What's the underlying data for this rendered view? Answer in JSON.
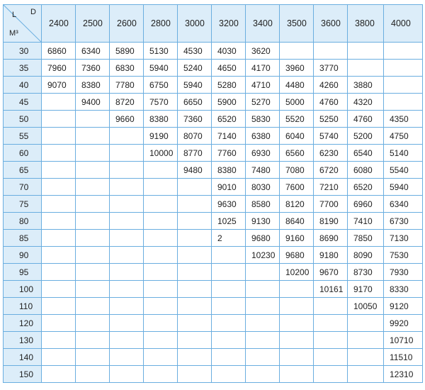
{
  "table": {
    "corner": {
      "row_label": "L",
      "col_label": "D",
      "unit": "M³"
    },
    "columns": [
      "2400",
      "2500",
      "2600",
      "2800",
      "3000",
      "3200",
      "3400",
      "3500",
      "3600",
      "3800",
      "4000"
    ],
    "rows": [
      [
        "30",
        "6860",
        "6340",
        "5890",
        "5130",
        "4530",
        "4030",
        "3620",
        null,
        null,
        null,
        null
      ],
      [
        "35",
        "7960",
        "7360",
        "6830",
        "5940",
        "5240",
        "4650",
        "4170",
        "3960",
        "3770",
        null,
        null
      ],
      [
        "40",
        "9070",
        "8380",
        "7780",
        "6750",
        "5940",
        "5280",
        "4710",
        "4480",
        "4260",
        "3880",
        null
      ],
      [
        "45",
        null,
        "9400",
        "8720",
        "7570",
        "6650",
        "5900",
        "5270",
        "5000",
        "4760",
        "4320",
        null
      ],
      [
        "50",
        null,
        null,
        "9660",
        "8380",
        "7360",
        "6520",
        "5830",
        "5520",
        "5250",
        "4760",
        "4350"
      ],
      [
        "55",
        null,
        null,
        null,
        "9190",
        "8070",
        "7140",
        "6380",
        "6040",
        "5740",
        "5200",
        "4750"
      ],
      [
        "60",
        null,
        null,
        null,
        "10000",
        "8770",
        "7760",
        "6930",
        "6560",
        "6230",
        "6540",
        "5140"
      ],
      [
        "65",
        null,
        null,
        null,
        null,
        "9480",
        "8380",
        "7480",
        "7080",
        "6720",
        "6080",
        "5540"
      ],
      [
        "70",
        null,
        null,
        null,
        null,
        null,
        "9010",
        "8030",
        "7600",
        "7210",
        "6520",
        "5940"
      ],
      [
        "75",
        null,
        null,
        null,
        null,
        null,
        "9630",
        "8580",
        "8120",
        "7700",
        "6960",
        "6340"
      ],
      [
        "80",
        null,
        null,
        null,
        null,
        null,
        "1025",
        "9130",
        "8640",
        "8190",
        "7410",
        "6730"
      ],
      [
        "85",
        null,
        null,
        null,
        null,
        null,
        "2",
        "9680",
        "9160",
        "8690",
        "7850",
        "7130"
      ],
      [
        "90",
        null,
        null,
        null,
        null,
        null,
        null,
        "10230",
        "9680",
        "9180",
        "8090",
        "7530"
      ],
      [
        "95",
        null,
        null,
        null,
        null,
        null,
        null,
        null,
        "10200",
        "9670",
        "8730",
        "7930"
      ],
      [
        "100",
        null,
        null,
        null,
        null,
        null,
        null,
        null,
        null,
        "10161",
        "9170",
        "8330"
      ],
      [
        "110",
        null,
        null,
        null,
        null,
        null,
        null,
        null,
        null,
        null,
        "10050",
        "9120"
      ],
      [
        "120",
        null,
        null,
        null,
        null,
        null,
        null,
        null,
        null,
        null,
        null,
        "9920"
      ],
      [
        "130",
        null,
        null,
        null,
        null,
        null,
        null,
        null,
        null,
        null,
        null,
        "10710"
      ],
      [
        "140",
        null,
        null,
        null,
        null,
        null,
        null,
        null,
        null,
        null,
        null,
        "11510"
      ],
      [
        "150",
        null,
        null,
        null,
        null,
        null,
        null,
        null,
        null,
        null,
        null,
        "12310"
      ]
    ]
  }
}
